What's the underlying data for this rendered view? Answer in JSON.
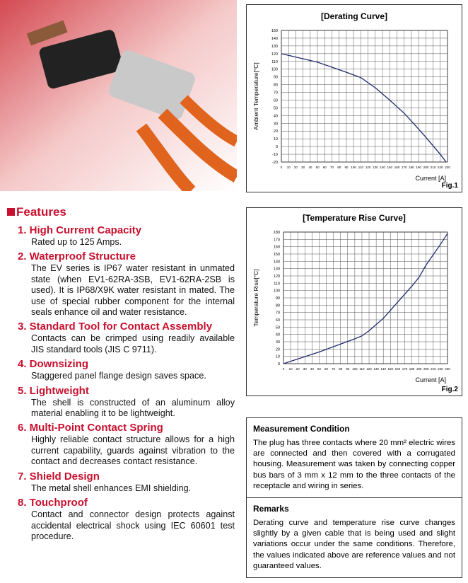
{
  "features": {
    "heading": "Features",
    "items": [
      {
        "title": "1. High Current Capacity",
        "body": "Rated up to 125 Amps."
      },
      {
        "title": "2. Waterproof Structure",
        "body": "The EV series is IP67 water resistant in unmated state (when EV1-62RA-3SB, EV1-62RA-2SB is used). It is IP68/X9K water resistant in mated. The use of special rubber component for the internal seals enhance oil and water resistance."
      },
      {
        "title": "3. Standard Tool for Contact Assembly",
        "body": "Contacts can be crimped using readily available JIS standard tools (JIS C 9711)."
      },
      {
        "title": "4. Downsizing",
        "body": "Staggered panel flange design saves space."
      },
      {
        "title": "5. Lightweight",
        "body": "The shell is constructed of an aluminum alloy material enabling it to be lightweight."
      },
      {
        "title": "6. Multi-Point Contact Spring",
        "body": "Highly reliable contact structure allows for a high current capability, guards against vibration to the contact and decreases contact resistance."
      },
      {
        "title": "7. Shield Design",
        "body": "The metal shell enhances EMI shielding."
      },
      {
        "title": "8. Touchproof",
        "body": "Contact and connector design protects against accidental electrical shock using IEC 60601 test procedure."
      }
    ]
  },
  "chart_data": [
    {
      "type": "line",
      "title": "[Derating Curve]",
      "xlabel": "Current [A]",
      "ylabel": "Ambient Temperature[°C]",
      "figure": "Fig.1",
      "color": "#1f2a6e",
      "grid": true,
      "x": [
        0,
        50,
        90,
        110,
        130,
        150,
        170,
        180,
        200,
        220,
        228
      ],
      "values": [
        120,
        109,
        96,
        89,
        76,
        60,
        43,
        33,
        12,
        -10,
        -20
      ],
      "xlim": [
        0,
        230
      ],
      "ylim": [
        -20,
        150
      ],
      "xticks": [
        0,
        10,
        20,
        30,
        40,
        50,
        60,
        70,
        80,
        90,
        100,
        110,
        120,
        130,
        140,
        150,
        160,
        170,
        180,
        190,
        200,
        210,
        220,
        230
      ],
      "yticks": [
        -20,
        -10,
        0,
        10,
        20,
        30,
        40,
        50,
        60,
        70,
        80,
        90,
        100,
        110,
        120,
        130,
        140,
        150
      ]
    },
    {
      "type": "line",
      "title": "[Temperature Rise Curve]",
      "xlabel": "Current [A]",
      "ylabel": "Temperature Rise[°C]",
      "figure": "Fig.2",
      "color": "#1f2a6e",
      "grid": true,
      "x": [
        0,
        50,
        100,
        110,
        120,
        140,
        160,
        180,
        190,
        200,
        220,
        230
      ],
      "values": [
        0,
        16,
        34,
        38,
        45,
        62,
        84,
        106,
        118,
        135,
        163,
        178
      ],
      "xlim": [
        0,
        230
      ],
      "ylim": [
        0,
        180
      ],
      "xticks": [
        0,
        10,
        20,
        30,
        40,
        50,
        60,
        70,
        80,
        90,
        100,
        110,
        120,
        130,
        140,
        150,
        160,
        170,
        180,
        190,
        200,
        210,
        220,
        230
      ],
      "yticks": [
        0,
        10,
        20,
        30,
        40,
        50,
        60,
        70,
        80,
        90,
        100,
        110,
        120,
        130,
        140,
        150,
        160,
        170,
        180
      ]
    }
  ],
  "notes": [
    {
      "title": "Measurement Condition",
      "body": "The plug has three contacts where 20 mm² electric wires are connected and then covered with a corrugated housing. Measurement was taken by connecting copper bus bars of 3 mm x 12 mm to the three contacts of the receptacle and wiring in series."
    },
    {
      "title": "Remarks",
      "body": "Derating curve and temperature rise curve changes slightly by a given cable that is being used and slight variations occur under the same conditions. Therefore, the values indicated above are reference values and not guaranteed values."
    }
  ]
}
